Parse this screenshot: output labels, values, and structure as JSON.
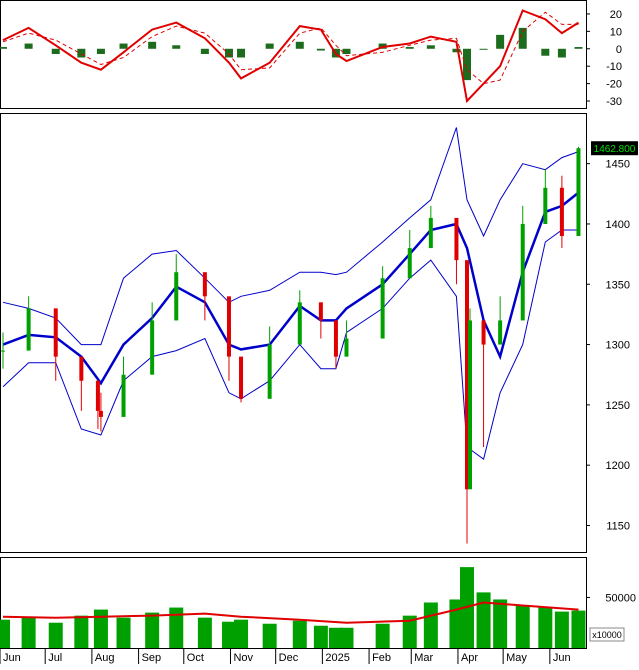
{
  "chart_data": [
    {
      "type": "bar",
      "panel": "macd",
      "y_ticks": [
        20,
        10,
        0,
        -10,
        -20,
        -30
      ],
      "y_tick_labels": [
        "20",
        "10",
        "0",
        "-10",
        "-20",
        "-30"
      ],
      "ylim": [
        -34,
        28
      ],
      "series": [
        {
          "kind": "line",
          "color": "#e00000",
          "style": "solid",
          "x": [
            "2024-06-03",
            "2024-06-20",
            "2024-07-08",
            "2024-07-25",
            "2024-08-07",
            "2024-08-22",
            "2024-09-10",
            "2024-09-26",
            "2024-10-15",
            "2024-10-31",
            "2024-11-08",
            "2024-11-27",
            "2024-12-17",
            "2024-12-31",
            "2025-01-10",
            "2025-01-17",
            "2025-02-10",
            "2025-02-28",
            "2025-03-14",
            "2025-03-31",
            "2025-04-07",
            "2025-04-18",
            "2025-04-29",
            "2025-05-14",
            "2025-05-29",
            "2025-06-09",
            "2025-06-20"
          ],
          "values": [
            5,
            12,
            2,
            -8,
            -12,
            -2,
            11,
            15,
            6,
            -8,
            -17,
            -8,
            13,
            11,
            -3,
            -7,
            1,
            3,
            7,
            4,
            -30,
            -20,
            -10,
            22,
            17,
            9,
            15
          ]
        },
        {
          "kind": "line",
          "color": "#e00000",
          "style": "dashed",
          "x": [
            "2024-06-03",
            "2024-06-20",
            "2024-07-08",
            "2024-07-25",
            "2024-08-07",
            "2024-08-22",
            "2024-09-10",
            "2024-09-26",
            "2024-10-15",
            "2024-10-31",
            "2024-11-08",
            "2024-11-27",
            "2024-12-17",
            "2024-12-31",
            "2025-01-10",
            "2025-01-17",
            "2025-02-10",
            "2025-02-28",
            "2025-03-14",
            "2025-03-31",
            "2025-04-07",
            "2025-04-18",
            "2025-04-29",
            "2025-05-14",
            "2025-05-29",
            "2025-06-09",
            "2025-06-20"
          ],
          "values": [
            4,
            9,
            5,
            -3,
            -9,
            -5,
            7,
            13,
            9,
            -3,
            -12,
            -11,
            9,
            12,
            2,
            -4,
            -2,
            2,
            5,
            6,
            -12,
            -20,
            -18,
            10,
            21,
            14,
            14
          ]
        },
        {
          "kind": "histogram",
          "color": "#1d6b1d",
          "x": [
            "2024-06-03",
            "2024-06-20",
            "2024-07-08",
            "2024-07-25",
            "2024-08-07",
            "2024-08-22",
            "2024-09-10",
            "2024-09-26",
            "2024-10-15",
            "2024-10-31",
            "2024-11-08",
            "2024-11-27",
            "2024-12-17",
            "2024-12-31",
            "2025-01-10",
            "2025-01-17",
            "2025-02-10",
            "2025-02-28",
            "2025-03-14",
            "2025-03-31",
            "2025-04-07",
            "2025-04-18",
            "2025-04-29",
            "2025-05-14",
            "2025-05-29",
            "2025-06-09",
            "2025-06-20"
          ],
          "values": [
            1,
            3,
            -3,
            -5,
            -3,
            3,
            4,
            2,
            -3,
            -5,
            -5,
            3,
            4,
            -1,
            -5,
            -3,
            3,
            1,
            2,
            -2,
            -18,
            0,
            8,
            12,
            -4,
            -5,
            1
          ]
        }
      ]
    },
    {
      "type": "candlestick",
      "panel": "price",
      "y_ticks": [
        1450,
        1400,
        1350,
        1300,
        1250,
        1200,
        1150
      ],
      "y_tick_labels": [
        "1450",
        "1400",
        "1350",
        "1300",
        "1250",
        "1200",
        "1150"
      ],
      "ylim": [
        1128,
        1492
      ],
      "last_price_label": "1462.800",
      "up_color": "#00a000",
      "down_color": "#e00000",
      "candles": {
        "x": [
          "2024-06-03",
          "2024-06-20",
          "2024-07-08",
          "2024-07-25",
          "2024-08-05",
          "2024-08-07",
          "2024-08-22",
          "2024-09-10",
          "2024-09-26",
          "2024-10-15",
          "2024-10-31",
          "2024-11-08",
          "2024-11-27",
          "2024-12-17",
          "2024-12-31",
          "2025-01-10",
          "2025-01-17",
          "2025-02-10",
          "2025-02-28",
          "2025-03-14",
          "2025-03-31",
          "2025-04-07",
          "2025-04-09",
          "2025-04-18",
          "2025-04-29",
          "2025-05-14",
          "2025-05-29",
          "2025-06-09",
          "2025-06-20"
        ],
        "close": [
          1295,
          1330,
          1290,
          1270,
          1245,
          1240,
          1275,
          1320,
          1360,
          1340,
          1290,
          1255,
          1300,
          1335,
          1320,
          1290,
          1305,
          1355,
          1380,
          1405,
          1370,
          1180,
          1320,
          1300,
          1320,
          1400,
          1430,
          1390,
          1462.8
        ],
        "low": [
          1280,
          1310,
          1270,
          1245,
          1230,
          1228,
          1260,
          1300,
          1345,
          1320,
          1270,
          1252,
          1285,
          1320,
          1305,
          1280,
          1290,
          1340,
          1365,
          1390,
          1350,
          1135,
          1200,
          1215,
          1300,
          1385,
          1400,
          1380,
          1440
        ],
        "high": [
          1310,
          1340,
          1305,
          1285,
          1262,
          1260,
          1290,
          1335,
          1375,
          1355,
          1305,
          1270,
          1315,
          1345,
          1335,
          1300,
          1320,
          1365,
          1395,
          1415,
          1390,
          1340,
          1330,
          1320,
          1340,
          1415,
          1445,
          1440,
          1464
        ]
      },
      "series": [
        {
          "name": "",
          "kind": "line",
          "color": "#0000cc",
          "style": "thick",
          "x": [
            "2024-06-03",
            "2024-06-20",
            "2024-07-08",
            "2024-07-25",
            "2024-08-07",
            "2024-08-22",
            "2024-09-10",
            "2024-09-26",
            "2024-10-15",
            "2024-10-31",
            "2024-11-08",
            "2024-11-27",
            "2024-12-17",
            "2024-12-31",
            "2025-01-10",
            "2025-01-17",
            "2025-02-10",
            "2025-02-28",
            "2025-03-14",
            "2025-03-31",
            "2025-04-07",
            "2025-04-18",
            "2025-04-29",
            "2025-05-14",
            "2025-05-29",
            "2025-06-09",
            "2025-06-20"
          ],
          "values": [
            1300,
            1308,
            1306,
            1290,
            1268,
            1300,
            1322,
            1348,
            1335,
            1300,
            1296,
            1300,
            1332,
            1320,
            1320,
            1330,
            1350,
            1375,
            1395,
            1400,
            1380,
            1320,
            1290,
            1360,
            1410,
            1415,
            1426
          ]
        },
        {
          "name": "",
          "kind": "line",
          "color": "#0000cc",
          "style": "thin",
          "x": [
            "2024-06-03",
            "2024-06-20",
            "2024-07-08",
            "2024-07-25",
            "2024-08-07",
            "2024-08-22",
            "2024-09-10",
            "2024-09-26",
            "2024-10-15",
            "2024-10-31",
            "2024-11-08",
            "2024-11-27",
            "2024-12-17",
            "2024-12-31",
            "2025-01-10",
            "2025-01-17",
            "2025-02-10",
            "2025-02-28",
            "2025-03-14",
            "2025-03-31",
            "2025-04-07",
            "2025-04-18",
            "2025-04-29",
            "2025-05-14",
            "2025-05-29",
            "2025-06-09",
            "2025-06-20"
          ],
          "values": [
            1335,
            1330,
            1322,
            1300,
            1300,
            1355,
            1375,
            1378,
            1355,
            1335,
            1340,
            1345,
            1360,
            1360,
            1358,
            1360,
            1385,
            1405,
            1420,
            1480,
            1420,
            1390,
            1420,
            1450,
            1445,
            1455,
            1460
          ]
        },
        {
          "name": "",
          "kind": "line",
          "color": "#0000cc",
          "style": "thin",
          "x": [
            "2024-06-03",
            "2024-06-20",
            "2024-07-08",
            "2024-07-25",
            "2024-08-07",
            "2024-08-22",
            "2024-09-10",
            "2024-09-26",
            "2024-10-15",
            "2024-10-31",
            "2024-11-08",
            "2024-11-27",
            "2024-12-17",
            "2024-12-31",
            "2025-01-10",
            "2025-01-17",
            "2025-02-10",
            "2025-02-28",
            "2025-03-14",
            "2025-03-31",
            "2025-04-07",
            "2025-04-18",
            "2025-04-29",
            "2025-05-14",
            "2025-05-29",
            "2025-06-09",
            "2025-06-20"
          ],
          "values": [
            1265,
            1285,
            1285,
            1230,
            1225,
            1270,
            1290,
            1295,
            1305,
            1260,
            1255,
            1270,
            1300,
            1280,
            1280,
            1310,
            1330,
            1355,
            1370,
            1340,
            1215,
            1205,
            1260,
            1300,
            1385,
            1395,
            1395
          ]
        }
      ]
    },
    {
      "type": "bar",
      "panel": "volume",
      "y_ticks": [
        50000
      ],
      "y_tick_labels": [
        "50000"
      ],
      "ylim": [
        0,
        90000
      ],
      "unit_label": "x10000",
      "bar_color": "#00a000",
      "x": [
        "2024-06-03",
        "2024-06-20",
        "2024-07-08",
        "2024-07-25",
        "2024-08-07",
        "2024-08-22",
        "2024-09-10",
        "2024-09-26",
        "2024-10-15",
        "2024-10-31",
        "2024-11-08",
        "2024-11-27",
        "2024-12-17",
        "2024-12-31",
        "2025-01-10",
        "2025-01-17",
        "2025-02-10",
        "2025-02-28",
        "2025-03-14",
        "2025-03-31",
        "2025-04-07",
        "2025-04-18",
        "2025-04-29",
        "2025-05-14",
        "2025-05-29",
        "2025-06-09",
        "2025-06-20"
      ],
      "values": [
        28000,
        30000,
        25000,
        32000,
        38000,
        30000,
        35000,
        40000,
        30000,
        26000,
        28000,
        24000,
        27000,
        22000,
        20000,
        20000,
        24000,
        32000,
        45000,
        48000,
        80000,
        55000,
        48000,
        42000,
        40000,
        36000,
        37000
      ],
      "series": [
        {
          "name": "",
          "kind": "line",
          "color": "#e00000",
          "x": [
            "2024-06-03",
            "2024-07-08",
            "2024-08-07",
            "2024-09-10",
            "2024-10-15",
            "2024-11-08",
            "2024-12-17",
            "2025-01-17",
            "2025-02-28",
            "2025-03-31",
            "2025-04-18",
            "2025-05-14",
            "2025-06-20"
          ],
          "values": [
            31000,
            30000,
            31000,
            32000,
            34000,
            31000,
            28000,
            25000,
            27000,
            38000,
            45000,
            42000,
            38000
          ]
        }
      ]
    }
  ],
  "x_axis": {
    "month_labels": [
      "Jun",
      "Jul",
      "Aug",
      "Sep",
      "Oct",
      "Nov",
      "Dec",
      "2025",
      "Feb",
      "Mar",
      "Apr",
      "May",
      "Jun"
    ],
    "month_starts": [
      "2024-06-01",
      "2024-07-01",
      "2024-08-01",
      "2024-09-01",
      "2024-10-01",
      "2024-11-01",
      "2024-12-01",
      "2025-01-01",
      "2025-02-01",
      "2025-03-01",
      "2025-04-01",
      "2025-05-01",
      "2025-06-01"
    ],
    "range": [
      "2024-06-01",
      "2025-06-25"
    ]
  }
}
